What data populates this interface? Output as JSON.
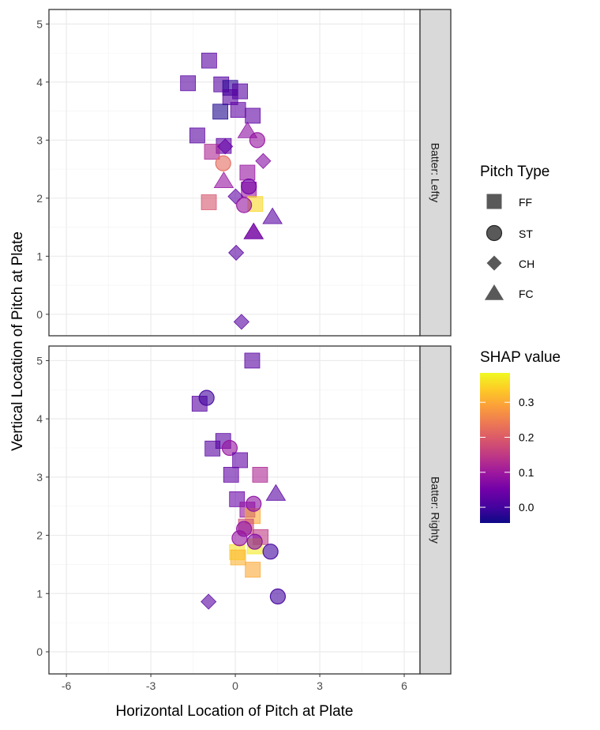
{
  "chart_data": {
    "type": "scatter",
    "xlabel": "Horizontal Location of Pitch at Plate",
    "ylabel": "Vertical Location of Pitch at Plate",
    "xlim": [
      -6.62,
      6.56
    ],
    "xticks": [
      -6,
      -3,
      0,
      3,
      6
    ],
    "xtick_labels": [
      "-6",
      "-3",
      "0",
      "3",
      "6"
    ],
    "grid": true,
    "facets": [
      {
        "label": "Batter: Lefty",
        "ylim": [
          -0.37,
          5.25
        ],
        "yticks": [
          0,
          1,
          2,
          3,
          4,
          5
        ],
        "ytick_labels": [
          "0",
          "1",
          "2",
          "3",
          "4",
          "5"
        ],
        "points": [
          {
            "x": -0.93,
            "y": 4.37,
            "type": "FF",
            "shap": 0.02
          },
          {
            "x": -1.68,
            "y": 3.98,
            "type": "FF",
            "shap": 0.02
          },
          {
            "x": -0.5,
            "y": 3.96,
            "type": "FF",
            "shap": 0.02
          },
          {
            "x": -0.18,
            "y": 3.9,
            "type": "FF",
            "shap": -0.02
          },
          {
            "x": 0.17,
            "y": 3.84,
            "type": "FF",
            "shap": 0.02
          },
          {
            "x": -0.18,
            "y": 3.74,
            "type": "FF",
            "shap": 0.02
          },
          {
            "x": -0.53,
            "y": 3.49,
            "type": "FF",
            "shap": -0.03
          },
          {
            "x": 0.1,
            "y": 3.52,
            "type": "FF",
            "shap": 0.03
          },
          {
            "x": 0.62,
            "y": 3.42,
            "type": "FF",
            "shap": 0.03
          },
          {
            "x": -1.35,
            "y": 3.08,
            "type": "FF",
            "shap": 0.02
          },
          {
            "x": 0.43,
            "y": 3.16,
            "type": "FC",
            "shap": 0.08
          },
          {
            "x": 0.78,
            "y": 3.0,
            "type": "ST",
            "shap": 0.09
          },
          {
            "x": -0.41,
            "y": 2.9,
            "type": "FF",
            "shap": 0.03
          },
          {
            "x": -0.83,
            "y": 2.8,
            "type": "FF",
            "shap": 0.12
          },
          {
            "x": -0.36,
            "y": 2.89,
            "type": "CH",
            "shap": 0.04
          },
          {
            "x": 0.99,
            "y": 2.64,
            "type": "CH",
            "shap": 0.07
          },
          {
            "x": -0.43,
            "y": 2.6,
            "type": "ST",
            "shap": 0.22
          },
          {
            "x": 0.43,
            "y": 2.44,
            "type": "FF",
            "shap": 0.09
          },
          {
            "x": -0.41,
            "y": 2.3,
            "type": "FC",
            "shap": 0.09
          },
          {
            "x": 0.48,
            "y": 2.15,
            "type": "FF",
            "shap": 0.1
          },
          {
            "x": 0.48,
            "y": 2.2,
            "type": "ST",
            "shap": 0.05
          },
          {
            "x": -0.94,
            "y": 1.93,
            "type": "FF",
            "shap": 0.19
          },
          {
            "x": 0.01,
            "y": 2.03,
            "type": "CH",
            "shap": 0.03
          },
          {
            "x": 0.71,
            "y": 1.9,
            "type": "FF",
            "shap": 0.35
          },
          {
            "x": 0.31,
            "y": 1.88,
            "type": "ST",
            "shap": 0.09
          },
          {
            "x": 1.32,
            "y": 1.68,
            "type": "FC",
            "shap": 0.02
          },
          {
            "x": 0.65,
            "y": 1.42,
            "type": "FC",
            "shap": 0.1
          },
          {
            "x": 0.65,
            "y": 1.42,
            "type": "FC",
            "shap": 0.04
          },
          {
            "x": 0.03,
            "y": 1.06,
            "type": "CH",
            "shap": 0.02
          },
          {
            "x": 0.22,
            "y": -0.13,
            "type": "CH",
            "shap": 0.02
          }
        ]
      },
      {
        "label": "Batter: Righty",
        "ylim": [
          -0.38,
          5.25
        ],
        "yticks": [
          0,
          1,
          2,
          3,
          4,
          5
        ],
        "ytick_labels": [
          "0",
          "1",
          "2",
          "3",
          "4",
          "5"
        ],
        "points": [
          {
            "x": 0.6,
            "y": 5.0,
            "type": "FF",
            "shap": 0.02
          },
          {
            "x": -1.27,
            "y": 4.26,
            "type": "FF",
            "shap": 0.02
          },
          {
            "x": -1.02,
            "y": 4.36,
            "type": "ST",
            "shap": 0.0
          },
          {
            "x": -0.43,
            "y": 3.62,
            "type": "FF",
            "shap": 0.02
          },
          {
            "x": -0.81,
            "y": 3.49,
            "type": "FF",
            "shap": 0.02
          },
          {
            "x": -0.2,
            "y": 3.5,
            "type": "ST",
            "shap": 0.09
          },
          {
            "x": 0.17,
            "y": 3.29,
            "type": "FF",
            "shap": 0.03
          },
          {
            "x": -0.15,
            "y": 3.04,
            "type": "FF",
            "shap": 0.03
          },
          {
            "x": 0.88,
            "y": 3.04,
            "type": "FF",
            "shap": 0.12
          },
          {
            "x": 1.44,
            "y": 2.72,
            "type": "FC",
            "shap": 0.02
          },
          {
            "x": 0.06,
            "y": 2.62,
            "type": "FF",
            "shap": 0.04
          },
          {
            "x": 0.43,
            "y": 2.44,
            "type": "FF",
            "shap": 0.09
          },
          {
            "x": 0.62,
            "y": 2.33,
            "type": "FF",
            "shap": 0.3
          },
          {
            "x": 0.65,
            "y": 2.54,
            "type": "ST",
            "shap": 0.08
          },
          {
            "x": 0.38,
            "y": 2.15,
            "type": "FF",
            "shap": 0.17
          },
          {
            "x": 0.31,
            "y": 2.11,
            "type": "ST",
            "shap": 0.08
          },
          {
            "x": 0.9,
            "y": 1.97,
            "type": "FF",
            "shap": 0.15
          },
          {
            "x": 0.69,
            "y": 1.81,
            "type": "FF",
            "shap": 0.37
          },
          {
            "x": 0.06,
            "y": 1.71,
            "type": "FF",
            "shap": 0.36
          },
          {
            "x": 0.1,
            "y": 1.62,
            "type": "FF",
            "shap": 0.31
          },
          {
            "x": 0.62,
            "y": 1.41,
            "type": "FF",
            "shap": 0.3
          },
          {
            "x": 0.15,
            "y": 1.95,
            "type": "ST",
            "shap": 0.09
          },
          {
            "x": 0.69,
            "y": 1.89,
            "type": "ST",
            "shap": 0.07
          },
          {
            "x": 1.25,
            "y": 1.72,
            "type": "ST",
            "shap": 0.0
          },
          {
            "x": 1.51,
            "y": 0.95,
            "type": "ST",
            "shap": 0.0
          },
          {
            "x": -0.95,
            "y": 0.86,
            "type": "CH",
            "shap": 0.02
          }
        ]
      }
    ],
    "legends": {
      "shape": {
        "title": "Pitch Type",
        "entries": [
          {
            "label": "FF",
            "shape": "square"
          },
          {
            "label": "ST",
            "shape": "circle"
          },
          {
            "label": "CH",
            "shape": "diamond"
          },
          {
            "label": "FC",
            "shape": "triangle"
          }
        ],
        "placement": "right"
      },
      "color": {
        "title": "SHAP value",
        "colormap": "plasma",
        "range": [
          -0.045,
          0.384
        ],
        "ticks": [
          0.0,
          0.1,
          0.2,
          0.3
        ],
        "tick_labels": [
          "0.0",
          "0.1",
          "0.2",
          "0.3"
        ],
        "placement": "right"
      }
    },
    "point_alpha": 0.6
  }
}
